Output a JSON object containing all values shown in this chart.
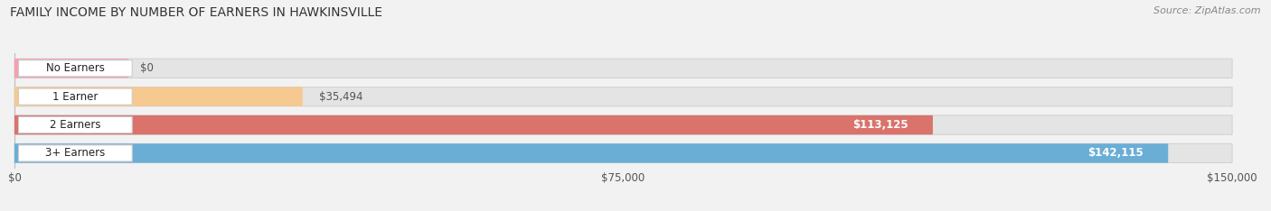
{
  "title": "FAMILY INCOME BY NUMBER OF EARNERS IN HAWKINSVILLE",
  "source": "Source: ZipAtlas.com",
  "categories": [
    "No Earners",
    "1 Earner",
    "2 Earners",
    "3+ Earners"
  ],
  "values": [
    0,
    35494,
    113125,
    142115
  ],
  "labels": [
    "$0",
    "$35,494",
    "$113,125",
    "$142,115"
  ],
  "bar_colors": [
    "#f4a0b0",
    "#f5c990",
    "#d9736c",
    "#6aaed6"
  ],
  "label_colors": [
    "#555555",
    "#555555",
    "#ffffff",
    "#ffffff"
  ],
  "x_ticks": [
    0,
    75000,
    150000
  ],
  "x_tick_labels": [
    "$0",
    "$75,000",
    "$150,000"
  ],
  "xlim_max": 150000,
  "background_color": "#f2f2f2",
  "bar_bg_color": "#e4e4e4",
  "title_fontsize": 10,
  "source_fontsize": 8,
  "bar_height": 0.68,
  "bar_gap": 1.0
}
